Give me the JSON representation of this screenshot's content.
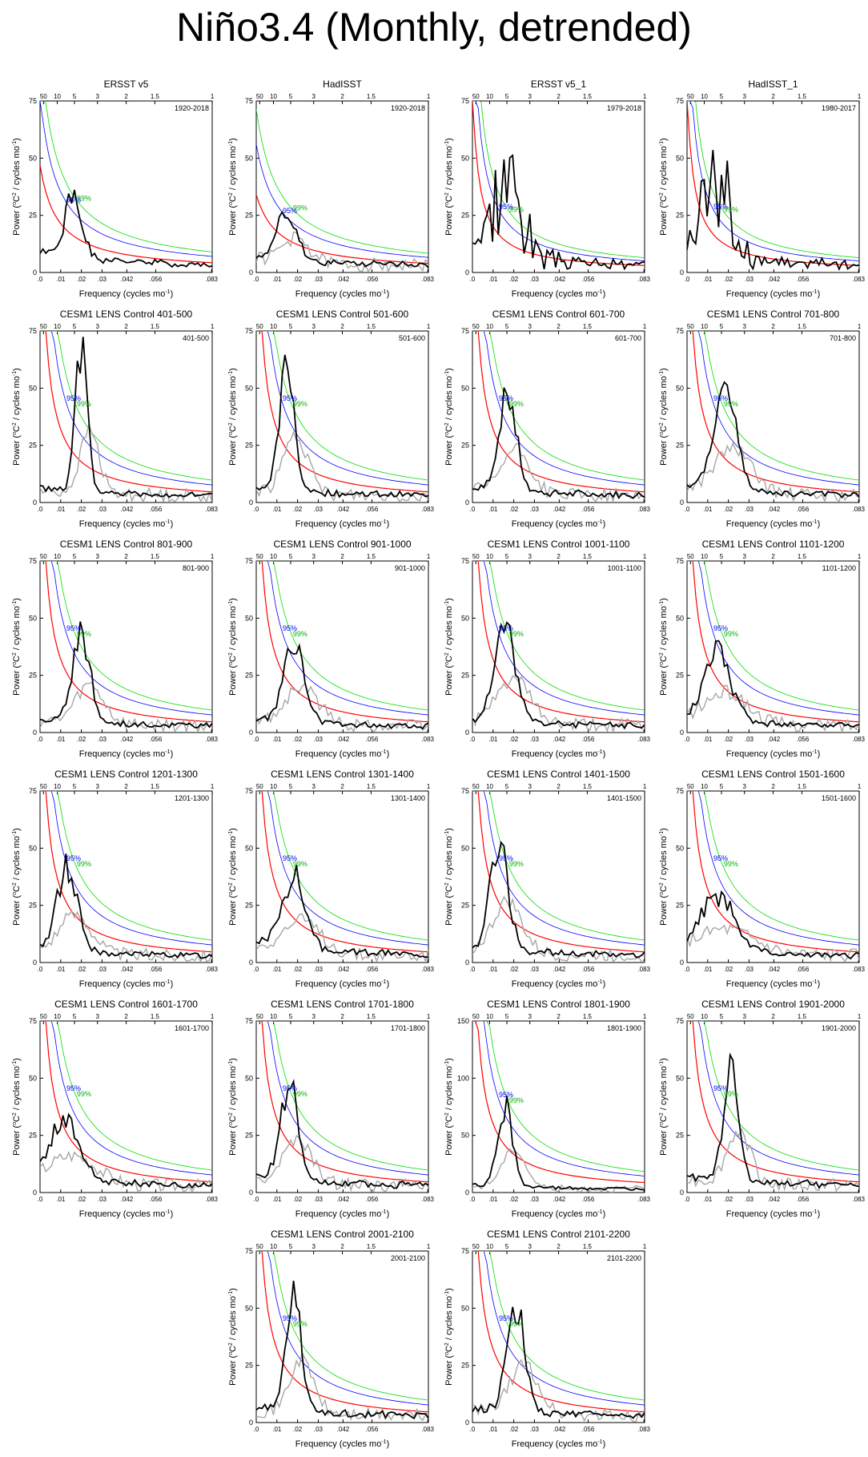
{
  "title": "Niño3.4 (Monthly, detrended)",
  "axis": {
    "xlabel_prefix": "Frequency (cycles mo",
    "xlabel_sup": "-1",
    "xlabel_suffix": ")",
    "ylabel_prefix": "Power (",
    "ylabel_sup1": "o",
    "ylabel_mid": "C",
    "ylabel_sup2": "2",
    "ylabel_suffix": " / cycles mo",
    "ylabel_sup3": "-1",
    "ylabel_end": ")",
    "bottom_ticks": [
      {
        "v": 0.0,
        "label": ".0"
      },
      {
        "v": 0.01,
        "label": ".01"
      },
      {
        "v": 0.02,
        "label": ".02"
      },
      {
        "v": 0.03,
        "label": ".03"
      },
      {
        "v": 0.042,
        "label": ".042"
      },
      {
        "v": 0.056,
        "label": ".056"
      },
      {
        "v": 0.083,
        "label": ".083"
      }
    ],
    "top_ticks": [
      {
        "v": 0.00167,
        "label": "50"
      },
      {
        "v": 0.00833,
        "label": "10"
      },
      {
        "v": 0.01667,
        "label": "5"
      },
      {
        "v": 0.02778,
        "label": "3"
      },
      {
        "v": 0.04167,
        "label": "2"
      },
      {
        "v": 0.05556,
        "label": "1.5"
      },
      {
        "v": 0.08333,
        "label": "1"
      }
    ],
    "confidence_labels": {
      "p95": "95%",
      "p99": "99%"
    },
    "colors": {
      "obs": "#000000",
      "ref": "#a6a6a6",
      "red_noise": "#ff0000",
      "c95": "#0000ff",
      "c99": "#00dd00"
    }
  },
  "chart_data": [
    {
      "type": "line",
      "title": "ERSST v5",
      "period": "1920-2018",
      "xlim": [
        0,
        0.0833
      ],
      "ylim": [
        0,
        75
      ],
      "yticks": [
        0,
        25,
        50,
        75
      ],
      "rn": {
        "A": 47,
        "k": 120
      },
      "curve": {
        "peak": 26,
        "pos": 0.016,
        "width": 0.006,
        "floor": 6,
        "seed": 1
      },
      "ref": false
    },
    {
      "type": "line",
      "title": "HadISST",
      "period": "1920-2018",
      "xlim": [
        0,
        0.0833
      ],
      "ylim": [
        0,
        75
      ],
      "yticks": [
        0,
        25,
        50,
        75
      ],
      "rn": {
        "A": 34,
        "k": 90
      },
      "curve": {
        "peak": 23,
        "pos": 0.015,
        "width": 0.006,
        "floor": 5,
        "seed": 2
      },
      "ref": true
    },
    {
      "type": "line",
      "title": "ERSST v5_1",
      "period": "1979-2018",
      "xlim": [
        0,
        0.0833
      ],
      "ylim": [
        0,
        75
      ],
      "yticks": [
        0,
        25,
        50,
        75
      ],
      "rn": {
        "A": 80,
        "k": 300
      },
      "curve": {
        "peak": 48,
        "pos": 0.017,
        "width": 0.01,
        "floor": 5,
        "seed": 3,
        "spiky": true
      },
      "ref": false
    },
    {
      "type": "line",
      "title": "HadISST_1",
      "period": "1980-2017",
      "xlim": [
        0,
        0.0833
      ],
      "ylim": [
        0,
        75
      ],
      "yticks": [
        0,
        25,
        50,
        75
      ],
      "rn": {
        "A": 80,
        "k": 300
      },
      "curve": {
        "peak": 45,
        "pos": 0.014,
        "width": 0.01,
        "floor": 5,
        "seed": 4,
        "spiky": true
      },
      "ref": false
    },
    {
      "type": "line",
      "title": "CESM1 LENS Control 401-500",
      "period": "401-500",
      "xlim": [
        0,
        0.0833
      ],
      "ylim": [
        0,
        75
      ],
      "yticks": [
        0,
        25,
        50,
        75
      ],
      "rn": {
        "A": 160,
        "k": 400
      },
      "curve": {
        "peak": 62,
        "pos": 0.02,
        "width": 0.004,
        "floor": 4,
        "seed": 5
      },
      "ref": true
    },
    {
      "type": "line",
      "title": "CESM1 LENS Control 501-600",
      "period": "501-600",
      "xlim": [
        0,
        0.0833
      ],
      "ylim": [
        0,
        75
      ],
      "yticks": [
        0,
        25,
        50,
        75
      ],
      "rn": {
        "A": 160,
        "k": 400
      },
      "curve": {
        "peak": 56,
        "pos": 0.015,
        "width": 0.005,
        "floor": 4,
        "seed": 6
      },
      "ref": true
    },
    {
      "type": "line",
      "title": "CESM1 LENS Control 601-700",
      "period": "601-700",
      "xlim": [
        0,
        0.0833
      ],
      "ylim": [
        0,
        75
      ],
      "yticks": [
        0,
        25,
        50,
        75
      ],
      "rn": {
        "A": 160,
        "k": 400
      },
      "curve": {
        "peak": 43,
        "pos": 0.017,
        "width": 0.006,
        "floor": 4,
        "seed": 7
      },
      "ref": true
    },
    {
      "type": "line",
      "title": "CESM1 LENS Control 701-800",
      "period": "701-800",
      "xlim": [
        0,
        0.0833
      ],
      "ylim": [
        0,
        75
      ],
      "yticks": [
        0,
        25,
        50,
        75
      ],
      "rn": {
        "A": 160,
        "k": 400
      },
      "curve": {
        "peak": 44,
        "pos": 0.018,
        "width": 0.008,
        "floor": 4,
        "seed": 8
      },
      "ref": true
    },
    {
      "type": "line",
      "title": "CESM1 LENS Control 801-900",
      "period": "801-900",
      "xlim": [
        0,
        0.0833
      ],
      "ylim": [
        0,
        75
      ],
      "yticks": [
        0,
        25,
        50,
        75
      ],
      "rn": {
        "A": 160,
        "k": 400
      },
      "curve": {
        "peak": 38,
        "pos": 0.02,
        "width": 0.006,
        "floor": 3,
        "seed": 9
      },
      "ref": true
    },
    {
      "type": "line",
      "title": "CESM1 LENS Control 901-1000",
      "period": "901-1000",
      "xlim": [
        0,
        0.0833
      ],
      "ylim": [
        0,
        75
      ],
      "yticks": [
        0,
        25,
        50,
        75
      ],
      "rn": {
        "A": 160,
        "k": 400
      },
      "curve": {
        "peak": 36,
        "pos": 0.018,
        "width": 0.007,
        "floor": 3,
        "seed": 10
      },
      "ref": true
    },
    {
      "type": "line",
      "title": "CESM1 LENS Control 1001-1100",
      "period": "1001-1100",
      "xlim": [
        0,
        0.0833
      ],
      "ylim": [
        0,
        75
      ],
      "yticks": [
        0,
        25,
        50,
        75
      ],
      "rn": {
        "A": 160,
        "k": 400
      },
      "curve": {
        "peak": 44,
        "pos": 0.016,
        "width": 0.007,
        "floor": 3,
        "seed": 11
      },
      "ref": true
    },
    {
      "type": "line",
      "title": "CESM1 LENS Control 1101-1200",
      "period": "1101-1200",
      "xlim": [
        0,
        0.0833
      ],
      "ylim": [
        0,
        75
      ],
      "yticks": [
        0,
        25,
        50,
        75
      ],
      "rn": {
        "A": 160,
        "k": 400
      },
      "curve": {
        "peak": 30,
        "pos": 0.015,
        "width": 0.009,
        "floor": 4,
        "seed": 12
      },
      "ref": true
    },
    {
      "type": "line",
      "title": "CESM1 LENS Control 1201-1300",
      "period": "1201-1300",
      "xlim": [
        0,
        0.0833
      ],
      "ylim": [
        0,
        75
      ],
      "yticks": [
        0,
        25,
        50,
        75
      ],
      "rn": {
        "A": 160,
        "k": 400
      },
      "curve": {
        "peak": 38,
        "pos": 0.013,
        "width": 0.007,
        "floor": 3,
        "seed": 13
      },
      "ref": true
    },
    {
      "type": "line",
      "title": "CESM1 LENS Control 1301-1400",
      "period": "1301-1400",
      "xlim": [
        0,
        0.0833
      ],
      "ylim": [
        0,
        75
      ],
      "yticks": [
        0,
        25,
        50,
        75
      ],
      "rn": {
        "A": 160,
        "k": 400
      },
      "curve": {
        "peak": 31,
        "pos": 0.018,
        "width": 0.008,
        "floor": 6,
        "seed": 14
      },
      "ref": true
    },
    {
      "type": "line",
      "title": "CESM1 LENS Control 1401-1500",
      "period": "1401-1500",
      "xlim": [
        0,
        0.0833
      ],
      "ylim": [
        0,
        75
      ],
      "yticks": [
        0,
        25,
        50,
        75
      ],
      "rn": {
        "A": 160,
        "k": 400
      },
      "curve": {
        "peak": 50,
        "pos": 0.013,
        "width": 0.006,
        "floor": 4,
        "seed": 15
      },
      "ref": true
    },
    {
      "type": "line",
      "title": "CESM1 LENS Control 1501-1600",
      "period": "1501-1600",
      "xlim": [
        0,
        0.0833
      ],
      "ylim": [
        0,
        75
      ],
      "yticks": [
        0,
        25,
        50,
        75
      ],
      "rn": {
        "A": 160,
        "k": 400
      },
      "curve": {
        "peak": 23,
        "pos": 0.015,
        "width": 0.012,
        "floor": 4,
        "seed": 16
      },
      "ref": true
    },
    {
      "type": "line",
      "title": "CESM1 LENS Control 1601-1700",
      "period": "1601-1700",
      "xlim": [
        0,
        0.0833
      ],
      "ylim": [
        0,
        75
      ],
      "yticks": [
        0,
        25,
        50,
        75
      ],
      "rn": {
        "A": 160,
        "k": 400
      },
      "curve": {
        "peak": 27,
        "pos": 0.012,
        "width": 0.01,
        "floor": 4,
        "seed": 17
      },
      "ref": true
    },
    {
      "type": "line",
      "title": "CESM1 LENS Control 1701-1800",
      "period": "1701-1800",
      "xlim": [
        0,
        0.0833
      ],
      "ylim": [
        0,
        75
      ],
      "yticks": [
        0,
        25,
        50,
        75
      ],
      "rn": {
        "A": 160,
        "k": 400
      },
      "curve": {
        "peak": 42,
        "pos": 0.016,
        "width": 0.006,
        "floor": 4,
        "seed": 18
      },
      "ref": true
    },
    {
      "type": "line",
      "title": "CESM1 LENS Control 1801-1900",
      "period": "1801-1900",
      "xlim": [
        0,
        0.0833
      ],
      "ylim": [
        0,
        150
      ],
      "yticks": [
        0,
        50,
        100,
        150
      ],
      "rn": {
        "A": 300,
        "k": 400
      },
      "curve": {
        "peak": 75,
        "pos": 0.016,
        "width": 0.005,
        "floor": 4,
        "seed": 19
      },
      "ref": true
    },
    {
      "type": "line",
      "title": "CESM1 LENS Control 1901-2000",
      "period": "1901-2000",
      "xlim": [
        0,
        0.0833
      ],
      "ylim": [
        0,
        75
      ],
      "yticks": [
        0,
        25,
        50,
        75
      ],
      "rn": {
        "A": 160,
        "k": 400
      },
      "curve": {
        "peak": 51,
        "pos": 0.021,
        "width": 0.005,
        "floor": 5,
        "seed": 20
      },
      "ref": true
    },
    {
      "type": "line",
      "title": "CESM1 LENS Control 2001-2100",
      "period": "2001-2100",
      "xlim": [
        0,
        0.0833
      ],
      "ylim": [
        0,
        75
      ],
      "yticks": [
        0,
        25,
        50,
        75
      ],
      "rn": {
        "A": 160,
        "k": 400
      },
      "curve": {
        "peak": 53,
        "pos": 0.018,
        "width": 0.005,
        "floor": 4,
        "seed": 21
      },
      "ref": true
    },
    {
      "type": "line",
      "title": "CESM1 LENS Control 2101-2200",
      "period": "2101-2200",
      "xlim": [
        0,
        0.0833
      ],
      "ylim": [
        0,
        75
      ],
      "yticks": [
        0,
        25,
        50,
        75
      ],
      "rn": {
        "A": 160,
        "k": 400
      },
      "curve": {
        "peak": 48,
        "pos": 0.021,
        "width": 0.006,
        "floor": 4,
        "seed": 22
      },
      "ref": true
    }
  ]
}
